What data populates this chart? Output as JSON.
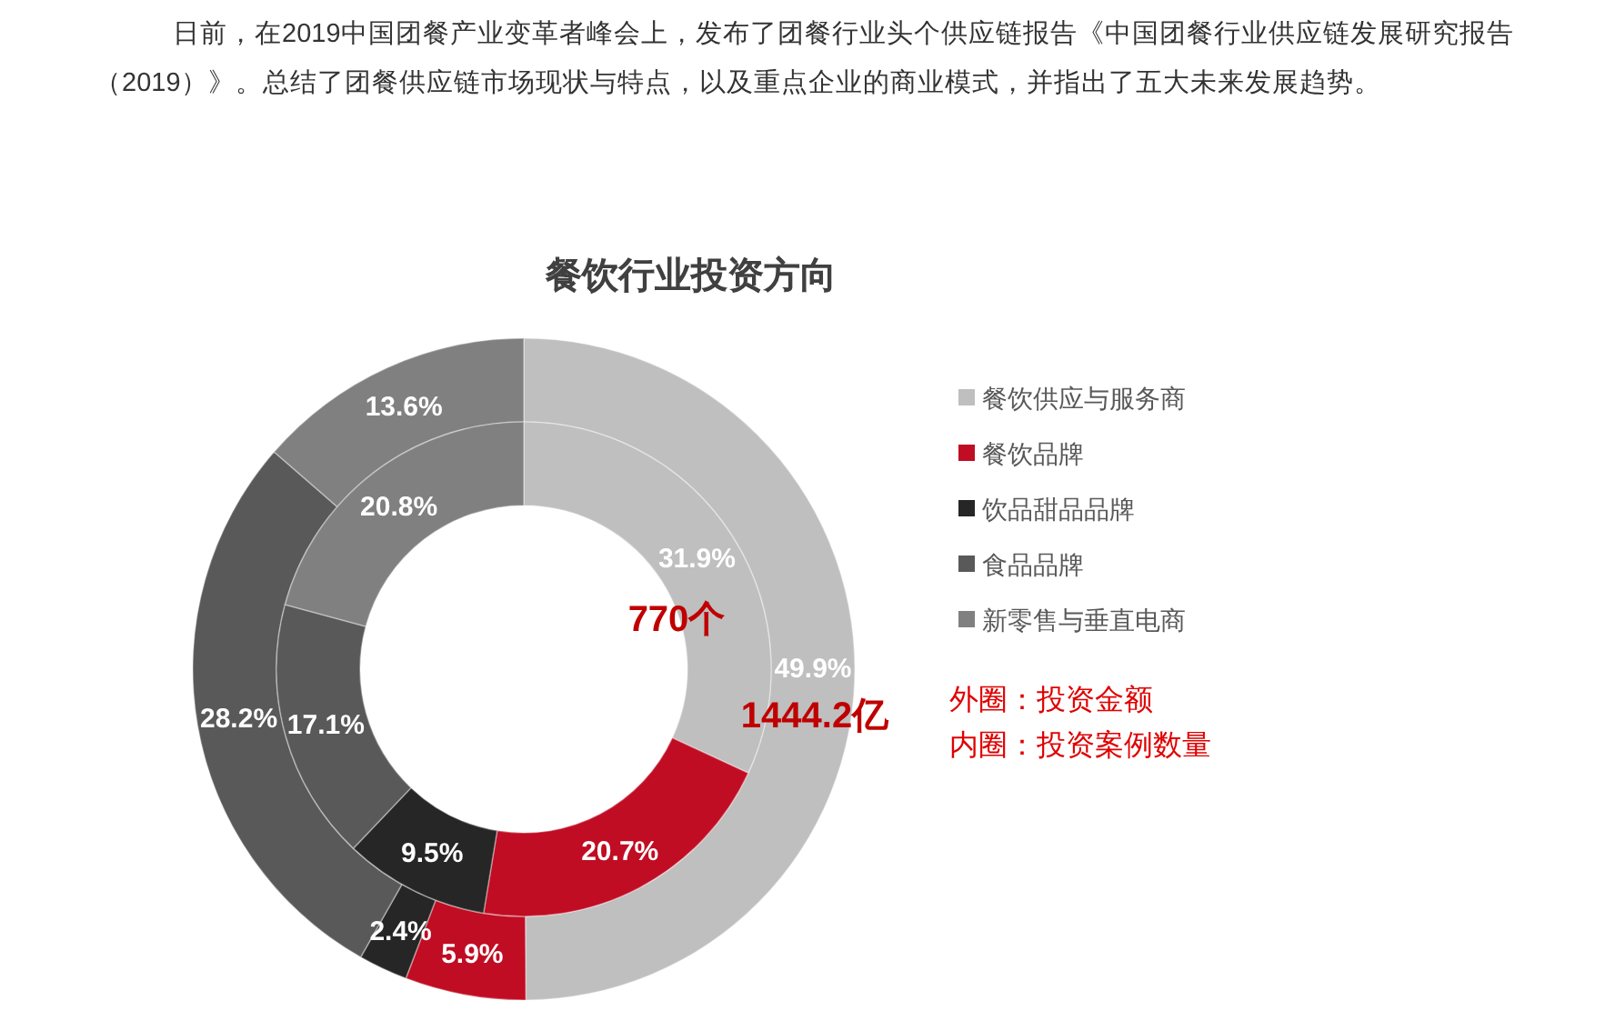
{
  "chart_data": {
    "type": "donut",
    "title": "餐饮行业投资方向",
    "categories": [
      "餐饮供应与服务商",
      "餐饮品牌",
      "饮品甜品品牌",
      "食品品牌",
      "新零售与垂直电商"
    ],
    "colors": [
      "#bfbfbf",
      "#c00d23",
      "#262626",
      "#595959",
      "#808080"
    ],
    "series": [
      {
        "values": [
          49.9,
          5.9,
          2.4,
          28.2,
          13.6
        ],
        "value_labels": [
          "49.9%",
          "5.9%",
          "2.4%",
          "28.2%",
          "13.6%"
        ]
      },
      {
        "values": [
          31.9,
          20.7,
          9.5,
          17.1,
          20.8
        ],
        "value_labels": [
          "31.9%",
          "20.7%",
          "9.5%",
          "17.1%",
          "20.8%"
        ]
      }
    ],
    "legend": "right",
    "annotations": [
      "日前，在2019中国团餐产业变革者峰会上，发布了团餐行业头个供应链报告《中国团餐行业供应链发展研究报告（2019）》。总结了团餐供应链市场现状与特点，以及重点企业的商业模式，并指出了五大未来发展趋势。",
      "770个",
      "1444.2亿",
      "外圈：投资金额",
      "内圈：投资案例数量"
    ]
  }
}
